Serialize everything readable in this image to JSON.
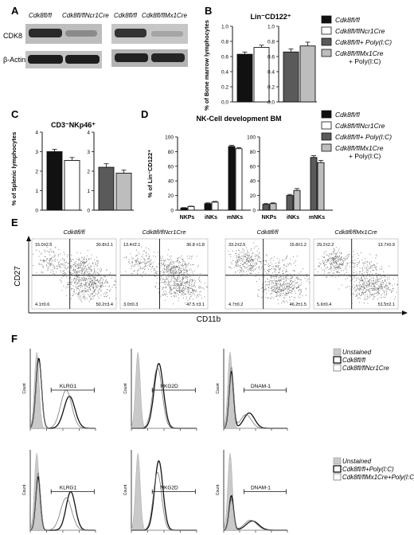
{
  "panel_letters": [
    "A",
    "B",
    "C",
    "D",
    "E",
    "F"
  ],
  "colors": {
    "black": "#111111",
    "white": "#ffffff",
    "darkgray": "#5a5a5a",
    "lightgray": "#bdbdbd",
    "unstained": "#c9c9c9"
  },
  "panelA": {
    "lanes_left": [
      "Cdk8fl/fl",
      "Cdk8fl/flNcr1Cre"
    ],
    "lanes_right": [
      "Cdk8fl/fl",
      "Cdk8fl/flMx1Cre"
    ],
    "row_labels": [
      "CDK8",
      "β-Actin"
    ]
  },
  "legend_main": [
    {
      "label": "Cdk8fl/fl",
      "color": "#111111"
    },
    {
      "label": "Cdk8fl/flNcr1Cre",
      "color": "#ffffff"
    },
    {
      "label": "Cdk8fl/fl+ Poly(I:C)",
      "color": "#5a5a5a"
    },
    {
      "label": "Cdk8fl/flMx1Cre",
      "label2": "+ Poly(I:C)",
      "color": "#bdbdbd"
    }
  ],
  "chart_data": [
    {
      "panel": "B",
      "type": "bar",
      "title": "Lin⁻CD122⁺",
      "ylabel": "% of Bone marrow lymphocytes",
      "ylim": [
        0,
        1.0
      ],
      "yticks": [
        "0.0",
        "0.2",
        "0.4",
        "0.6",
        "0.8",
        "1.0"
      ],
      "groups": [
        {
          "series": [
            {
              "name": "Cdk8fl/fl",
              "value": 0.63,
              "err": 0.03,
              "color": "#111111"
            },
            {
              "name": "Cdk8fl/flNcr1Cre",
              "value": 0.72,
              "err": 0.03,
              "color": "#ffffff"
            }
          ]
        },
        {
          "series": [
            {
              "name": "Cdk8fl/fl + Poly(I:C)",
              "value": 0.66,
              "err": 0.04,
              "color": "#5a5a5a"
            },
            {
              "name": "Cdk8fl/flMx1Cre + Poly(I:C)",
              "value": 0.74,
              "err": 0.05,
              "color": "#bdbdbd"
            }
          ]
        }
      ]
    },
    {
      "panel": "C",
      "type": "bar",
      "title": "CD3⁻NKp46⁺",
      "ylabel": "% of Splenic lymphocytes",
      "ylim": [
        0,
        4
      ],
      "yticks": [
        "0",
        "1",
        "2",
        "3",
        "4"
      ],
      "groups": [
        {
          "series": [
            {
              "name": "Cdk8fl/fl",
              "value": 3.0,
              "err": 0.12,
              "color": "#111111"
            },
            {
              "name": "Cdk8fl/flNcr1Cre",
              "value": 2.55,
              "err": 0.15,
              "color": "#ffffff"
            }
          ]
        },
        {
          "series": [
            {
              "name": "Cdk8fl/fl + Poly(I:C)",
              "value": 2.2,
              "err": 0.18,
              "color": "#5a5a5a"
            },
            {
              "name": "Cdk8fl/flMx1Cre + Poly(I:C)",
              "value": 1.9,
              "err": 0.15,
              "color": "#bdbdbd"
            }
          ]
        }
      ]
    },
    {
      "panel": "D",
      "type": "bar",
      "title": "NK-Cell development BM",
      "ylabel": "% of Lin⁻CD122⁺",
      "ylim": [
        0,
        100
      ],
      "yticks": [
        "0",
        "20",
        "40",
        "60",
        "80",
        "100"
      ],
      "categories": [
        "NKPs",
        "iNKs",
        "mNKs"
      ],
      "groups": [
        {
          "series": [
            {
              "name": "Cdk8fl/fl",
              "values": [
                3,
                9,
                87
              ],
              "errs": [
                0.5,
                1,
                1.5
              ],
              "color": "#111111"
            },
            {
              "name": "Cdk8fl/flNcr1Cre",
              "values": [
                5,
                11,
                84
              ],
              "errs": [
                0.5,
                1,
                1.5
              ],
              "color": "#ffffff"
            }
          ]
        },
        {
          "series": [
            {
              "name": "Cdk8fl/fl + Poly(I:C)",
              "values": [
                8,
                20,
                72
              ],
              "errs": [
                1,
                1.5,
                2.5
              ],
              "color": "#5a5a5a"
            },
            {
              "name": "Cdk8fl/flMx1Cre + Poly(I:C)",
              "values": [
                9,
                27,
                65
              ],
              "errs": [
                1,
                2.5,
                3
              ],
              "color": "#bdbdbd"
            }
          ]
        }
      ]
    },
    {
      "panel": "E",
      "type": "scatter",
      "xlabel": "CD11b",
      "ylabel": "CD27",
      "plots": [
        {
          "title": "Cdk8fl/fl",
          "q": [
            "15.0±2.5",
            "30.8±2.1",
            "4.1±0.6",
            "50.2±3.4"
          ]
        },
        {
          "title": "Cdk8fl/flNcr1Cre",
          "q": [
            "13.4±2.1",
            "36.8 ±1.8",
            "3.0±0.3",
            "47.5 ±3.1"
          ]
        },
        {
          "title": "Cdk8fl/fl",
          "q": [
            "33.2±2.5",
            "15.8±1.2",
            "4.7±0.2",
            "46.2±1.5"
          ]
        },
        {
          "title": "Cdk8fl/flMx1Cre",
          "q": [
            "29.2±2.2",
            "13.7±0.9",
            "5.6±0.4",
            "51.5±2.1"
          ]
        }
      ]
    },
    {
      "panel": "F",
      "type": "histogram",
      "ylabel": "Count",
      "markers": [
        "KLRG1",
        "NKG2D",
        "DNAM-1"
      ],
      "legend_top": [
        "Unstained",
        "Cdk8fl/fl",
        "Cdk8fl/flNcr1Cre"
      ],
      "legend_bottom": [
        "Unstained",
        "Cdk8fl/fl+Poly(I:C)",
        "Cdk8fl/flMx1Cre+Poly(I:C)"
      ]
    }
  ]
}
